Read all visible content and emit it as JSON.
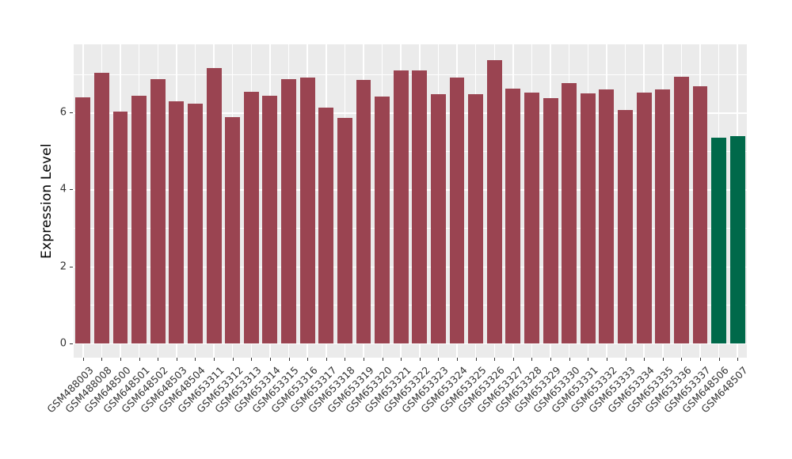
{
  "chart_data": {
    "type": "bar",
    "title": "",
    "xlabel": "",
    "ylabel": "Expression Level",
    "y_ticks": [
      0,
      2,
      4,
      6
    ],
    "y_minor_ticks": [
      1,
      3,
      5,
      7
    ],
    "ylim": [
      0,
      7.78
    ],
    "grid": true,
    "legend_position": "none",
    "categories": [
      "GSM488003",
      "GSM488008",
      "GSM648500",
      "GSM648501",
      "GSM648502",
      "GSM648503",
      "GSM648504",
      "GSM653311",
      "GSM653312",
      "GSM653313",
      "GSM653314",
      "GSM653315",
      "GSM653316",
      "GSM653317",
      "GSM653318",
      "GSM653319",
      "GSM653320",
      "GSM653321",
      "GSM653322",
      "GSM653323",
      "GSM653324",
      "GSM653325",
      "GSM653326",
      "GSM653327",
      "GSM653328",
      "GSM653329",
      "GSM653330",
      "GSM653331",
      "GSM653332",
      "GSM653333",
      "GSM653334",
      "GSM653335",
      "GSM653336",
      "GSM653337",
      "GSM648506",
      "GSM648507"
    ],
    "values": [
      6.39,
      7.03,
      6.02,
      6.45,
      6.87,
      6.3,
      6.23,
      7.17,
      5.89,
      6.54,
      6.45,
      6.87,
      6.91,
      6.14,
      5.86,
      6.85,
      6.41,
      7.09,
      7.09,
      6.48,
      6.91,
      6.48,
      7.36,
      6.62,
      6.52,
      6.38,
      6.77,
      6.5,
      6.6,
      6.06,
      6.52,
      6.61,
      6.93,
      6.69,
      5.35,
      5.4
    ],
    "highlighted_categories": [
      "GSM648506",
      "GSM648507"
    ],
    "colors": {
      "bar_default": "#9A4451",
      "bar_highlight": "#00694A",
      "panel_background": "#EBEBEB",
      "grid": "#FFFFFF",
      "tick_label": "#333333",
      "axis_title": "#000000"
    }
  }
}
